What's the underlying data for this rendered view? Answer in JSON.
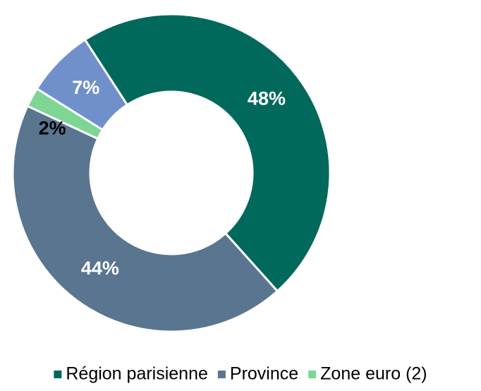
{
  "chart_data": {
    "type": "donut",
    "categories": [
      "Région parisienne",
      "Province",
      "Zone euro (2)",
      null
    ],
    "values": [
      48,
      44,
      2,
      7
    ],
    "value_labels": [
      "48%",
      "44%",
      "2%",
      "7%"
    ],
    "colors": [
      "#00695c",
      "#5a7590",
      "#7dd694",
      "#7090cc"
    ],
    "label_colors": [
      "#ffffff",
      "#ffffff",
      "#000000",
      "#ffffff"
    ],
    "legend": "bottom"
  }
}
